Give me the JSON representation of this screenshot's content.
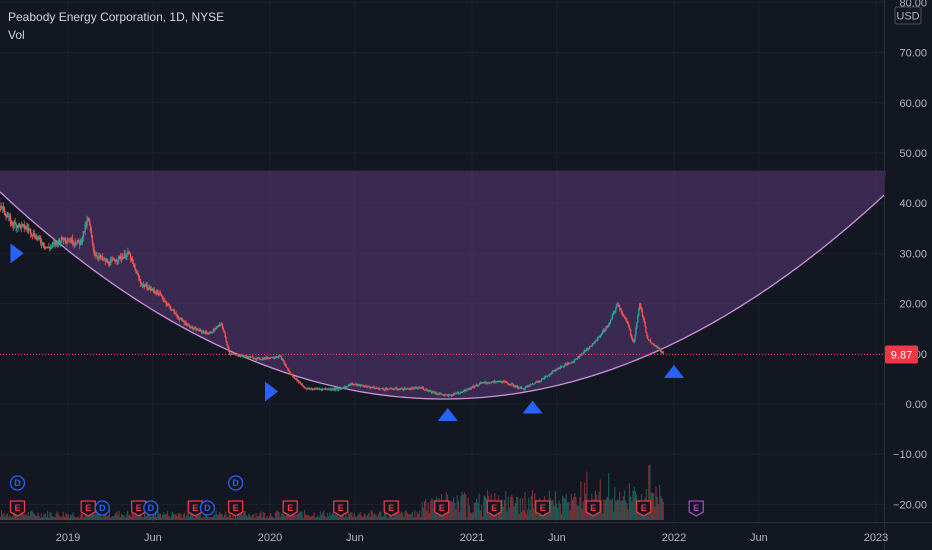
{
  "header": {
    "title": "Peabody Energy Corporation, 1D, NYSE",
    "indicator": "Vol"
  },
  "colors": {
    "background": "#131722",
    "up": "#26a69a",
    "down": "#ef5350",
    "arc": "#ce93d8",
    "shade": "#5b3a7a",
    "marker": "#2962ff",
    "price_line": "#f23645",
    "dividend": "#2962ff",
    "earnings": "#f23645",
    "earnings_future": "#ab47bc"
  },
  "chart_data": {
    "type": "candlestick",
    "symbol": "Peabody Energy Corporation",
    "interval": "1D",
    "exchange": "NYSE",
    "currency": "USD",
    "last_price": "9.87",
    "ylim": [
      -22,
      80
    ],
    "y_ticks": [
      "80.00",
      "70.00",
      "60.00",
      "50.00",
      "40.00",
      "30.00",
      "20.00",
      "10.00",
      "0.00",
      "−10.00",
      "−20.00"
    ],
    "x_ticks": [
      "2019",
      "Jun",
      "2020",
      "Jun",
      "2021",
      "Jun",
      "2022",
      "Jun",
      "2023"
    ],
    "x_tick_years": [
      2019.0,
      2019.42,
      2020.0,
      2020.42,
      2021.0,
      2021.42,
      2022.0,
      2022.42,
      2023.0
    ],
    "x_range": [
      2018.59,
      2023.05
    ],
    "price_path": [
      [
        2018.59,
        40
      ],
      [
        2018.62,
        44.5
      ],
      [
        2018.66,
        40
      ],
      [
        2018.72,
        36
      ],
      [
        2018.8,
        35
      ],
      [
        2018.9,
        31
      ],
      [
        2018.98,
        33
      ],
      [
        2019.06,
        32
      ],
      [
        2019.1,
        37
      ],
      [
        2019.13,
        30
      ],
      [
        2019.2,
        28
      ],
      [
        2019.3,
        30
      ],
      [
        2019.36,
        24
      ],
      [
        2019.45,
        22
      ],
      [
        2019.55,
        17
      ],
      [
        2019.62,
        15
      ],
      [
        2019.7,
        14
      ],
      [
        2019.76,
        16
      ],
      [
        2019.8,
        10
      ],
      [
        2019.95,
        9
      ],
      [
        2020.05,
        9.5
      ],
      [
        2020.1,
        6
      ],
      [
        2020.18,
        3
      ],
      [
        2020.35,
        3
      ],
      [
        2020.4,
        4
      ],
      [
        2020.55,
        3
      ],
      [
        2020.68,
        3
      ],
      [
        2020.75,
        3.2
      ],
      [
        2020.82,
        2.2
      ],
      [
        2020.88,
        1.6
      ],
      [
        2020.95,
        2.5
      ],
      [
        2021.05,
        4.2
      ],
      [
        2021.15,
        4.5
      ],
      [
        2021.25,
        3
      ],
      [
        2021.35,
        5
      ],
      [
        2021.42,
        7
      ],
      [
        2021.5,
        8.5
      ],
      [
        2021.6,
        12
      ],
      [
        2021.68,
        16
      ],
      [
        2021.72,
        20
      ],
      [
        2021.77,
        16
      ],
      [
        2021.8,
        12
      ],
      [
        2021.83,
        20
      ],
      [
        2021.87,
        13
      ],
      [
        2021.95,
        10
      ]
    ],
    "overlays": {
      "arc": {
        "vertex_year": 2020.86,
        "vertex_price": 1.0,
        "reference_year": 2023.05,
        "reference_price": 42.0
      },
      "channel_top": 46.5,
      "channel_end_year": 2023.05
    },
    "markers": [
      {
        "kind": "right",
        "year": 2018.58,
        "price": 35
      },
      {
        "kind": "right",
        "year": 2018.74,
        "price": 30
      },
      {
        "kind": "right",
        "year": 2020.0,
        "price": 2.5
      },
      {
        "kind": "up",
        "year": 2020.88,
        "price": -2
      },
      {
        "kind": "up",
        "year": 2021.3,
        "price": -0.5
      },
      {
        "kind": "up",
        "year": 2022.0,
        "price": 6.6
      }
    ],
    "events": {
      "row1": [
        {
          "label": "D",
          "type": "dividend",
          "year": 2018.75
        },
        {
          "label": "D",
          "type": "dividend",
          "year": 2019.83
        }
      ],
      "row2": [
        {
          "label": "E",
          "type": "earnings",
          "year": 2018.75
        },
        {
          "label": "E",
          "type": "earnings",
          "year": 2019.1
        },
        {
          "label": "D",
          "type": "dividend",
          "year": 2019.17
        },
        {
          "label": "E",
          "type": "earnings",
          "year": 2019.35
        },
        {
          "label": "D",
          "type": "dividend",
          "year": 2019.41
        },
        {
          "label": "E",
          "type": "earnings",
          "year": 2019.63
        },
        {
          "label": "D",
          "type": "dividend",
          "year": 2019.69
        },
        {
          "label": "E",
          "type": "earnings",
          "year": 2019.83
        },
        {
          "label": "E",
          "type": "earnings",
          "year": 2020.1
        },
        {
          "label": "E",
          "type": "earnings",
          "year": 2020.35
        },
        {
          "label": "E",
          "type": "earnings",
          "year": 2020.6
        },
        {
          "label": "E",
          "type": "earnings",
          "year": 2020.85
        },
        {
          "label": "E",
          "type": "earnings",
          "year": 2021.11
        },
        {
          "label": "E",
          "type": "earnings",
          "year": 2021.35
        },
        {
          "label": "E",
          "type": "earnings",
          "year": 2021.6
        },
        {
          "label": "E",
          "type": "earnings",
          "year": 2021.85
        },
        {
          "label": "E",
          "type": "earnings_future",
          "year": 2022.11
        }
      ]
    }
  }
}
